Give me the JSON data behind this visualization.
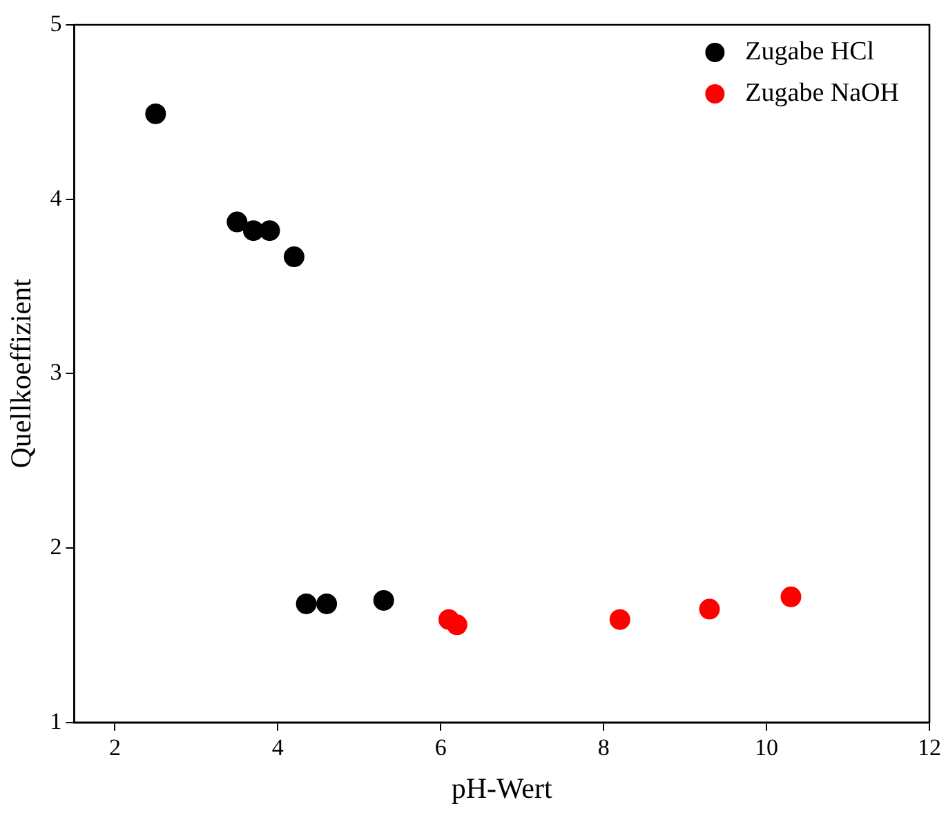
{
  "chart_data": {
    "type": "scatter",
    "xlabel": "pH-Wert",
    "ylabel": "Quellkoeffizient",
    "xlim": [
      1.5,
      12
    ],
    "xticks": [
      2,
      4,
      6,
      8,
      10,
      12
    ],
    "ylim": [
      1,
      5
    ],
    "yticks": [
      1,
      2,
      3,
      4,
      5
    ],
    "grid": false,
    "legend": "top right",
    "marker": "circle",
    "series": [
      {
        "name": "Zugabe HCl",
        "color": "#000000",
        "x": [
          2.5,
          3.5,
          3.7,
          3.9,
          4.2,
          4.35,
          4.6,
          5.3
        ],
        "values": [
          4.49,
          3.87,
          3.82,
          3.82,
          3.67,
          1.68,
          1.68,
          1.7
        ]
      },
      {
        "name": "Zugabe NaOH",
        "color": "#ff0000",
        "x": [
          6.1,
          6.2,
          8.2,
          9.3,
          10.3
        ],
        "values": [
          1.59,
          1.56,
          1.59,
          1.65,
          1.72
        ]
      }
    ]
  }
}
